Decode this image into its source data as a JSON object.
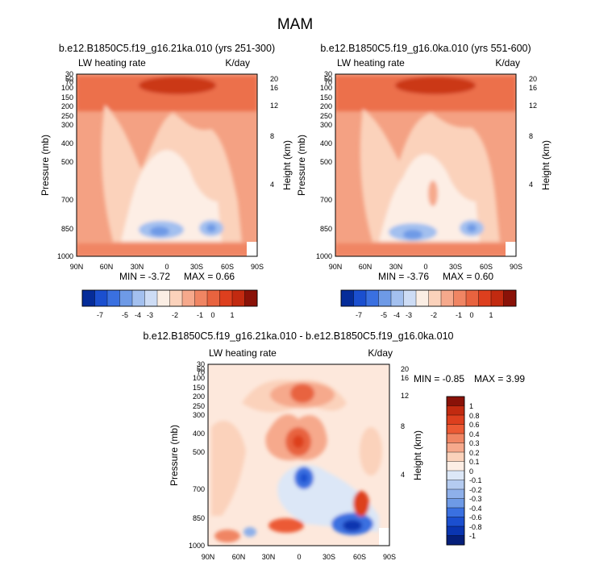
{
  "figure_title": "MAM",
  "chart_data": [
    {
      "type": "heatmap",
      "title": "b.e12.B1850C5.f19_g16.21ka.010 (yrs 251-300)",
      "left_label": "LW heating rate",
      "right_label": "K/day",
      "xlabel": "",
      "ylabel": "Pressure (mb)",
      "y2label": "Height (km)",
      "x_ticks": [
        "90N",
        "60N",
        "30N",
        "0",
        "30S",
        "60S",
        "90S"
      ],
      "y_ticks": [
        "30",
        "50",
        "70",
        "100",
        "150",
        "200",
        "250",
        "300",
        "400",
        "500",
        "700",
        "850",
        "1000"
      ],
      "y2_ticks": [
        "20",
        "16",
        "12",
        "8",
        "4"
      ],
      "min_text": "MIN =  -3.72",
      "max_text": "MAX =  0.66",
      "colorbar_labels": [
        "-7",
        "-5",
        "-4",
        "-3",
        "-2",
        "-1",
        "0",
        "1"
      ],
      "colorbar_colors": [
        "#052c99",
        "#1b4fcf",
        "#3a70e0",
        "#6e9ae6",
        "#a3c0ef",
        "#cddcf5",
        "#fbeee4",
        "#fbd2bb",
        "#f6a98c",
        "#f08563",
        "#e8633f",
        "#dd3f1e",
        "#c22a10",
        "#8a1208"
      ],
      "background_color": "#f4a183"
    },
    {
      "type": "heatmap",
      "title": "b.e12.B1850C5.f19_g16.0ka.010 (yrs 551-600)",
      "left_label": "LW heating rate",
      "right_label": "K/day",
      "xlabel": "",
      "ylabel": "Pressure (mb)",
      "y2label": "Height (km)",
      "x_ticks": [
        "90N",
        "60N",
        "30N",
        "0",
        "30S",
        "60S",
        "90S"
      ],
      "y_ticks": [
        "30",
        "50",
        "70",
        "100",
        "150",
        "200",
        "250",
        "300",
        "400",
        "500",
        "700",
        "850",
        "1000"
      ],
      "y2_ticks": [
        "20",
        "16",
        "12",
        "8",
        "4"
      ],
      "min_text": "MIN =  -3.76",
      "max_text": "MAX =  0.60",
      "colorbar_labels": [
        "-7",
        "-5",
        "-4",
        "-3",
        "-2",
        "-1",
        "0",
        "1"
      ],
      "colorbar_colors": [
        "#052c99",
        "#1b4fcf",
        "#3a70e0",
        "#6e9ae6",
        "#a3c0ef",
        "#cddcf5",
        "#fbeee4",
        "#fbd2bb",
        "#f6a98c",
        "#f08563",
        "#e8633f",
        "#dd3f1e",
        "#c22a10",
        "#8a1208"
      ],
      "background_color": "#f4a183"
    },
    {
      "type": "heatmap",
      "title": "b.e12.B1850C5.f19_g16.21ka.010 - b.e12.B1850C5.f19_g16.0ka.010",
      "left_label": "LW heating rate",
      "right_label": "K/day",
      "xlabel": "",
      "ylabel": "Pressure (mb)",
      "y2label": "Height (km)",
      "x_ticks": [
        "90N",
        "60N",
        "30N",
        "0",
        "30S",
        "60S",
        "90S"
      ],
      "y_ticks": [
        "30",
        "50",
        "70",
        "100",
        "150",
        "200",
        "250",
        "300",
        "400",
        "500",
        "700",
        "850",
        "1000"
      ],
      "y2_ticks": [
        "20",
        "16",
        "12",
        "8",
        "4"
      ],
      "min_text": "MIN =  -0.85",
      "max_text": "MAX =   3.99",
      "colorbar_labels": [
        "1",
        "0.8",
        "0.6",
        "0.4",
        "0.3",
        "0.2",
        "0.1",
        "0",
        "-0.1",
        "-0.2",
        "-0.3",
        "-0.4",
        "-0.6",
        "-0.8",
        "-1"
      ],
      "colorbar_colors": [
        "#8a1208",
        "#c22a10",
        "#dd3f1e",
        "#ec5a34",
        "#f08563",
        "#f6a98c",
        "#fbd2bb",
        "#fdeee5",
        "#dce7f7",
        "#b4cbf0",
        "#8eb0ea",
        "#6e9ae6",
        "#3a70e0",
        "#1b4fcf",
        "#0a35b0",
        "#051f7a"
      ],
      "background_color": "#fde8dc"
    }
  ]
}
